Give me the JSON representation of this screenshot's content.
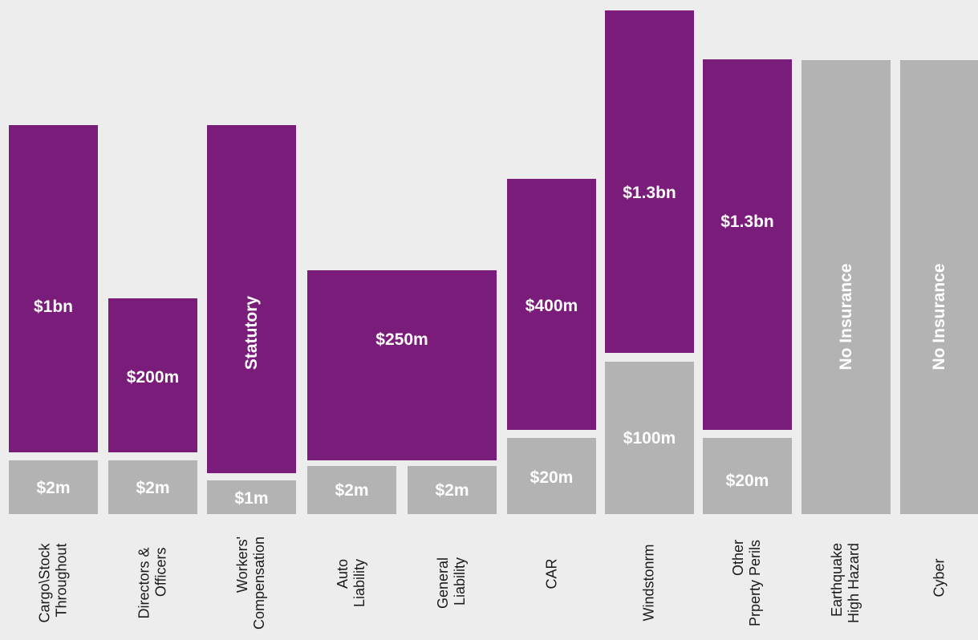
{
  "colors": {
    "background": "#ededed",
    "upper_layer": "#7a1c7a",
    "retention_layer": "#b3b3b3",
    "label_text": "#ffffff",
    "category_text": "#1a1a1a"
  },
  "chart_data": {
    "type": "bar",
    "categories": [
      "Cargo\\Stock\nThroughout",
      "Directors &\nOfficers",
      "Workers'\nCompensation",
      "Auto\nLiability",
      "General\nLiability",
      "CAR",
      "Windstonrm",
      "Other\nPrperty Perils",
      "Earthquake\nHigh Hazard",
      "Cyber"
    ],
    "series": [
      {
        "values": [
          "$2m",
          "$2m",
          "$1m",
          "$2m",
          "$2m",
          "$20m",
          "$100m",
          "$20m",
          "No Insurance",
          "No Insurance"
        ]
      },
      {
        "values": [
          "$1bn",
          "$200m",
          "Statutory",
          "$250m",
          "$250m",
          "$400m",
          "$1.3bn",
          "$1.3bn",
          null,
          null
        ]
      }
    ],
    "xlabel": "",
    "ylabel": "",
    "grid": false,
    "legend": "none"
  }
}
